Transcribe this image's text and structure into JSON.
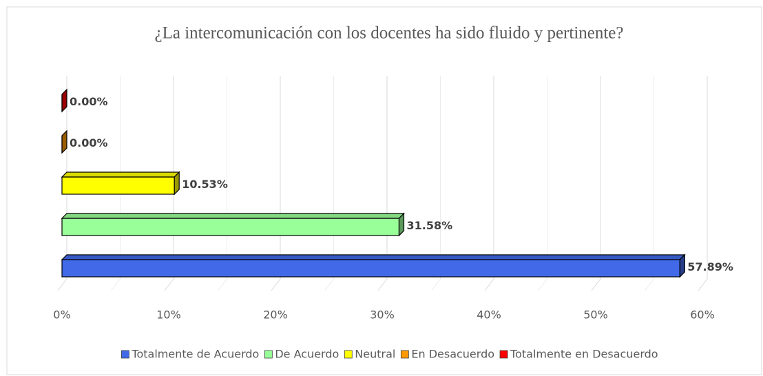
{
  "chart_data": {
    "type": "bar3d-horizontal",
    "title": "¿La intercomunicación con los docentes ha sido fluido y pertinente?",
    "series": [
      {
        "name": "Totalmente de Acuerdo",
        "color": "#4169e8",
        "values": [
          57.89
        ],
        "value_labels": [
          "57.89%"
        ]
      },
      {
        "name": "De Acuerdo",
        "color": "#99ff99",
        "values": [
          31.58
        ],
        "value_labels": [
          "31.58%"
        ]
      },
      {
        "name": "Neutral",
        "color": "#ffff00",
        "values": [
          10.53
        ],
        "value_labels": [
          "10.53%"
        ]
      },
      {
        "name": "En Desacuerdo",
        "color": "#ff9900",
        "values": [
          0
        ],
        "value_labels": [
          "0.00%"
        ]
      },
      {
        "name": "Totalmente en Desacuerdo",
        "color": "#ff0000",
        "values": [
          0
        ],
        "value_labels": [
          "0.00%"
        ]
      }
    ],
    "xlim": [
      0,
      60
    ],
    "xticks": [
      {
        "value": 0,
        "label": "0%"
      },
      {
        "value": 10,
        "label": "10%"
      },
      {
        "value": 20,
        "label": "20%"
      },
      {
        "value": 30,
        "label": "30%"
      },
      {
        "value": 40,
        "label": "40%"
      },
      {
        "value": 50,
        "label": "50%"
      },
      {
        "value": 60,
        "label": "60%"
      }
    ],
    "grid": true,
    "legend": "bottom"
  }
}
